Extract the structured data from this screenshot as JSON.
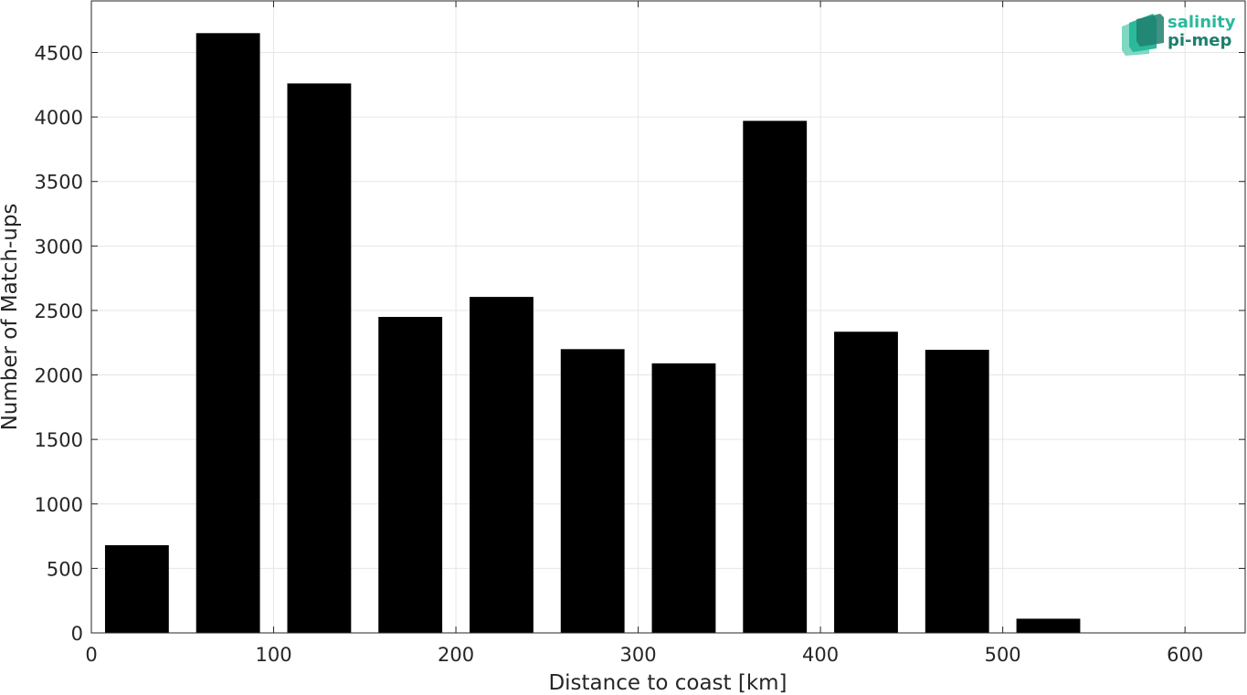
{
  "chart_data": {
    "type": "bar",
    "xlabel": "Distance to coast [km]",
    "ylabel": "Number of Match-ups",
    "xlim": [
      0,
      633
    ],
    "ylim": [
      0,
      4900
    ],
    "grid": true,
    "x_ticks": [
      0,
      100,
      200,
      300,
      400,
      500,
      600
    ],
    "y_ticks": [
      0,
      500,
      1000,
      1500,
      2000,
      2500,
      3000,
      3500,
      4000,
      4500
    ],
    "bin_width": 35,
    "x": [
      25,
      75,
      125,
      175,
      225,
      275,
      325,
      375,
      425,
      475,
      525,
      575
    ],
    "values": [
      680,
      4650,
      4260,
      2450,
      2605,
      2200,
      2090,
      3970,
      2335,
      2195,
      110,
      0
    ],
    "bar_color": "#000000"
  },
  "logo": {
    "line1": "salinity",
    "line2": "pi-mep",
    "colors": [
      "#2bb89b",
      "#1e7f6e",
      "#7fd8c2"
    ]
  }
}
